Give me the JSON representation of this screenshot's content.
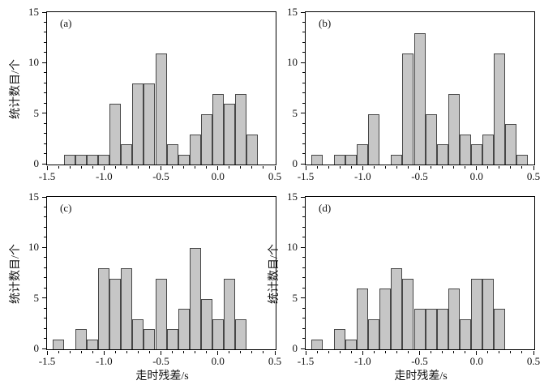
{
  "figure": {
    "background": "#ffffff",
    "bar_fill": "#c6c6c6",
    "bar_border": "#474747",
    "axis_color": "#000000",
    "ylabel": "统计数目/个",
    "xlabel": "走时残差/s"
  },
  "chart_data": [
    {
      "type": "bar",
      "subtype": "histogram",
      "panel_label": "(a)",
      "bin_start": -1.35,
      "bin_width": 0.1,
      "heights": [
        1,
        1,
        1,
        1,
        6,
        2,
        8,
        8,
        11,
        2,
        1,
        3,
        5,
        7,
        6,
        7,
        3
      ],
      "total_count": 73,
      "xlim": [
        -1.5,
        0.5
      ],
      "ylim": [
        0,
        15
      ],
      "x_tick_values": [
        -1.5,
        -1.0,
        -0.5,
        0.0,
        0.5
      ],
      "x_tick_labels": [
        "-1.5",
        "-1.0",
        "-0.5",
        "0.0",
        "0.5"
      ],
      "y_tick_values": [
        0,
        5,
        10,
        15
      ],
      "y_tick_labels": [
        "0",
        "5",
        "10",
        "15"
      ],
      "x_minor_step": 0.1,
      "y_minor_step": 1,
      "show_ylabel": true,
      "show_xlabel": false,
      "grid": false,
      "legend": false
    },
    {
      "type": "bar",
      "subtype": "histogram",
      "panel_label": "(b)",
      "bin_start": -1.45,
      "bin_width": 0.1,
      "heights": [
        1,
        0,
        1,
        1,
        2,
        5,
        0,
        1,
        11,
        13,
        5,
        2,
        7,
        3,
        2,
        3,
        11,
        4,
        1
      ],
      "total_count": 73,
      "xlim": [
        -1.5,
        0.5
      ],
      "ylim": [
        0,
        15
      ],
      "x_tick_values": [
        -1.5,
        -1.0,
        -0.5,
        0.0,
        0.5
      ],
      "x_tick_labels": [
        "-1.5",
        "-1.0",
        "-0.5",
        "0.0",
        "0.5"
      ],
      "y_tick_values": [
        0,
        5,
        10,
        15
      ],
      "y_tick_labels": [
        "0",
        "5",
        "10",
        "15"
      ],
      "x_minor_step": 0.1,
      "y_minor_step": 1,
      "show_ylabel": false,
      "show_xlabel": false,
      "grid": false,
      "legend": false
    },
    {
      "type": "bar",
      "subtype": "histogram",
      "panel_label": "(c)",
      "bin_start": -1.45,
      "bin_width": 0.1,
      "heights": [
        1,
        0,
        2,
        1,
        8,
        7,
        8,
        3,
        2,
        7,
        2,
        4,
        10,
        5,
        3,
        7,
        3
      ],
      "total_count": 73,
      "xlim": [
        -1.5,
        0.5
      ],
      "ylim": [
        0,
        15
      ],
      "x_tick_values": [
        -1.5,
        -1.0,
        -0.5,
        0.0,
        0.5
      ],
      "x_tick_labels": [
        "-1.5",
        "-1.0",
        "-0.5",
        "0.0",
        "0.5"
      ],
      "y_tick_values": [
        0,
        5,
        10,
        15
      ],
      "y_tick_labels": [
        "0",
        "5",
        "10",
        "15"
      ],
      "x_minor_step": 0.1,
      "y_minor_step": 1,
      "show_ylabel": true,
      "show_xlabel": true,
      "grid": false,
      "legend": false
    },
    {
      "type": "bar",
      "subtype": "histogram",
      "panel_label": "(d)",
      "bin_start": -1.45,
      "bin_width": 0.1,
      "heights": [
        1,
        0,
        2,
        1,
        6,
        3,
        6,
        8,
        7,
        4,
        4,
        4,
        6,
        3,
        7,
        7,
        4
      ],
      "total_count": 73,
      "xlim": [
        -1.5,
        0.5
      ],
      "ylim": [
        0,
        15
      ],
      "x_tick_values": [
        -1.5,
        -1.0,
        -0.5,
        0.0,
        0.5
      ],
      "x_tick_labels": [
        "-1.5",
        "-1.0",
        "-0.5",
        "0.0",
        "0.5"
      ],
      "y_tick_values": [
        0,
        5,
        10,
        15
      ],
      "y_tick_labels": [
        "0",
        "5",
        "10",
        "15"
      ],
      "x_minor_step": 0.1,
      "y_minor_step": 1,
      "show_ylabel": true,
      "show_xlabel": true,
      "grid": false,
      "legend": false
    }
  ]
}
